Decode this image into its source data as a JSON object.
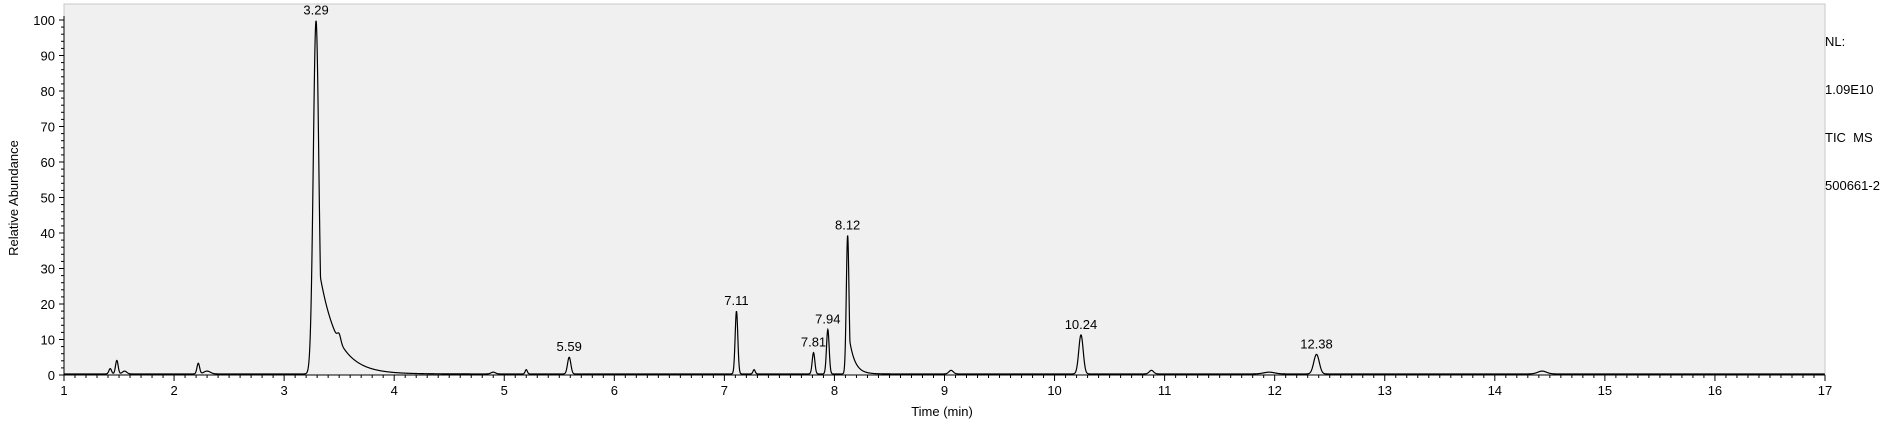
{
  "meta": {
    "nl_label": "NL:",
    "nl_value": "1.09E10",
    "trace": "TIC  MS",
    "sample": "500661-2"
  },
  "colors": {
    "plot_background": "#f0f0f0",
    "trace": "#000000",
    "axis": "#000000"
  },
  "chart_data": {
    "type": "line",
    "xlabel": "Time (min)",
    "ylabel": "Relative Abundance",
    "xlim": [
      1,
      17
    ],
    "ylim": [
      0,
      100
    ],
    "x_ticks": [
      1,
      2,
      3,
      4,
      5,
      6,
      7,
      8,
      9,
      10,
      11,
      12,
      13,
      14,
      15,
      16,
      17
    ],
    "y_ticks": [
      0,
      10,
      20,
      30,
      40,
      50,
      60,
      70,
      80,
      90,
      100
    ],
    "grid": false,
    "baseline": 0.3,
    "peaks": [
      {
        "rt": 1.42,
        "height": 1.5,
        "width": 0.012
      },
      {
        "rt": 1.48,
        "height": 3.8,
        "width": 0.012
      },
      {
        "rt": 1.55,
        "height": 0.8,
        "width": 0.02
      },
      {
        "rt": 2.22,
        "height": 3.0,
        "width": 0.012
      },
      {
        "rt": 2.3,
        "height": 0.8,
        "width": 0.03
      },
      {
        "rt": 3.29,
        "height": 99.5,
        "width": 0.025,
        "tail": 0.16,
        "label": "3.29"
      },
      {
        "rt": 3.5,
        "height": 2.0,
        "width": 0.015
      },
      {
        "rt": 4.9,
        "height": 0.5,
        "width": 0.02
      },
      {
        "rt": 5.2,
        "height": 1.2,
        "width": 0.01
      },
      {
        "rt": 5.59,
        "height": 4.7,
        "width": 0.015,
        "label": "5.59"
      },
      {
        "rt": 7.11,
        "height": 17.7,
        "width": 0.012,
        "label": "7.11"
      },
      {
        "rt": 7.27,
        "height": 1.2,
        "width": 0.01
      },
      {
        "rt": 7.81,
        "height": 6.0,
        "width": 0.012,
        "label": "7.81"
      },
      {
        "rt": 7.94,
        "height": 12.5,
        "width": 0.012,
        "label": "7.94"
      },
      {
        "rt": 8.12,
        "height": 39.0,
        "width": 0.012,
        "tail": 0.05,
        "label": "8.12"
      },
      {
        "rt": 9.06,
        "height": 1.0,
        "width": 0.02
      },
      {
        "rt": 10.24,
        "height": 11.0,
        "width": 0.02,
        "label": "10.24"
      },
      {
        "rt": 10.88,
        "height": 1.0,
        "width": 0.02
      },
      {
        "rt": 11.95,
        "height": 0.5,
        "width": 0.05
      },
      {
        "rt": 12.38,
        "height": 5.5,
        "width": 0.025,
        "label": "12.38"
      },
      {
        "rt": 14.43,
        "height": 0.8,
        "width": 0.04
      }
    ]
  }
}
